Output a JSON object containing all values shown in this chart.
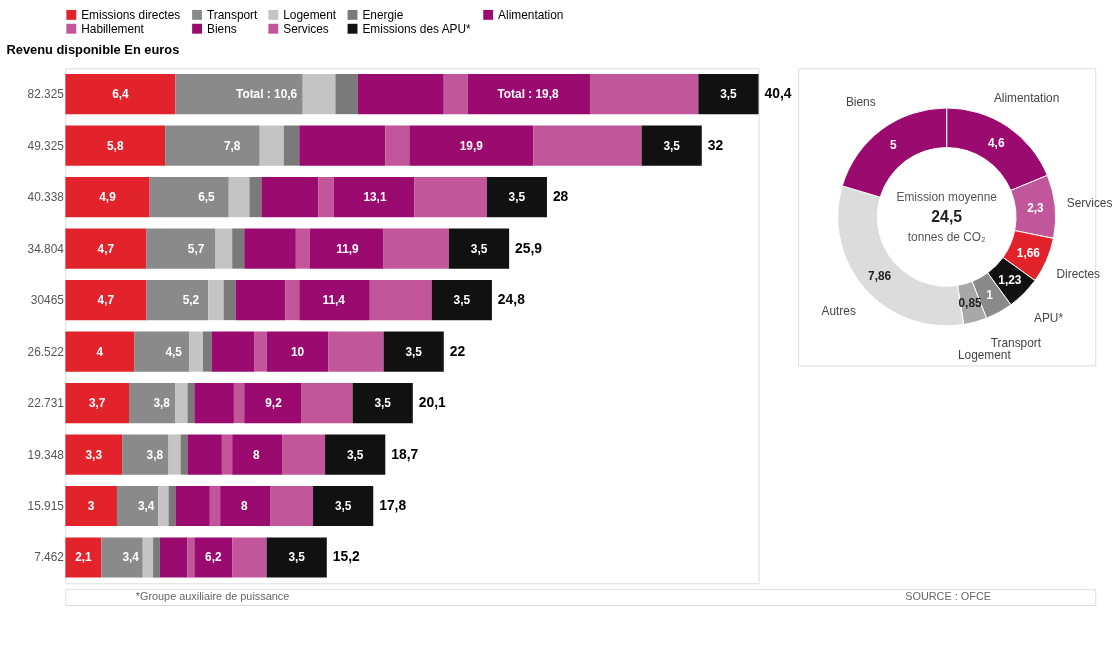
{
  "chart_data": [
    {
      "type": "bar",
      "orientation": "horizontal",
      "stacked": true,
      "ylabel": "Revenu disponible En euros",
      "legend": "top",
      "categories": [
        "82.325",
        "49.325",
        "40.338",
        "34.804",
        "30465",
        "26.522",
        "22.731",
        "19.348",
        "15.915",
        "7.462"
      ],
      "series": [
        {
          "name": "Emissions directes",
          "color": "#e3232c",
          "values": [
            6.4,
            5.8,
            4.9,
            4.7,
            4.7,
            4,
            3.7,
            3.3,
            3,
            2.1
          ],
          "value_labels": [
            "6,4",
            "5,8",
            "4,9",
            "4,7",
            "4,7",
            "4",
            "3,7",
            "3,3",
            "3",
            "2,1"
          ]
        },
        {
          "name": "Transport",
          "color": "#8a8a8a",
          "values": [
            7.4,
            5.5,
            4.6,
            4.0,
            3.6,
            3.2,
            2.7,
            2.7,
            2.4,
            2.4
          ]
        },
        {
          "name": "Logement",
          "color": "#c4c4c4",
          "values": [
            1.9,
            1.4,
            1.2,
            1.0,
            0.9,
            0.8,
            0.7,
            0.7,
            0.6,
            0.6
          ]
        },
        {
          "name": "Energie",
          "color": "#7a7a7a",
          "values": [
            1.3,
            0.9,
            0.7,
            0.7,
            0.7,
            0.5,
            0.4,
            0.4,
            0.4,
            0.4
          ]
        },
        {
          "name": "Alimentation",
          "color": "#9b0a6e",
          "values": [
            5.0,
            5.0,
            3.3,
            3.0,
            2.9,
            2.5,
            2.3,
            2.0,
            2.0,
            1.6
          ]
        },
        {
          "name": "Habillement",
          "color": "#c2569a",
          "values": [
            1.4,
            1.4,
            0.9,
            0.8,
            0.8,
            0.7,
            0.6,
            0.6,
            0.6,
            0.4
          ]
        },
        {
          "name": "Biens",
          "color": "#9b0a6e",
          "values": [
            7.1,
            7.2,
            4.7,
            4.3,
            4.1,
            3.6,
            3.3,
            2.9,
            2.9,
            2.2
          ]
        },
        {
          "name": "Services",
          "color": "#c2569a",
          "values": [
            6.3,
            6.3,
            4.2,
            3.8,
            3.6,
            3.2,
            3.0,
            2.5,
            2.5,
            2.0
          ]
        },
        {
          "name": "Emissions des APU*",
          "color": "#111111",
          "values": [
            3.5,
            3.5,
            3.5,
            3.5,
            3.5,
            3.5,
            3.5,
            3.5,
            3.5,
            3.5
          ],
          "value_labels": [
            "3,5",
            "3,5",
            "3,5",
            "3,5",
            "3,5",
            "3,5",
            "3,5",
            "3,5",
            "3,5",
            "3,5"
          ]
        }
      ],
      "totals": [
        "40,4",
        "32",
        "28",
        "25,9",
        "24,8",
        "22",
        "20,1",
        "18,7",
        "17,8",
        "15,2"
      ],
      "annotations": [
        "*Groupe auxiliaire de puissance",
        "SOURCE : OFCE",
        {
          "text": "Total : 10,6",
          "x": 11.7,
          "y": "82.325"
        },
        {
          "text": "7,8",
          "x": 9.7,
          "y": "49.325"
        },
        {
          "text": "6,5",
          "x": 8.2,
          "y": "40.338"
        },
        {
          "text": "5,7",
          "x": 7.6,
          "y": "34.804"
        },
        {
          "text": "5,2",
          "x": 7.3,
          "y": "30465"
        },
        {
          "text": "4,5",
          "x": 6.3,
          "y": "26.522"
        },
        {
          "text": "3,8",
          "x": 5.6,
          "y": "22.731"
        },
        {
          "text": "3,8",
          "x": 5.2,
          "y": "19.348"
        },
        {
          "text": "3,4",
          "x": 4.7,
          "y": "15.915"
        },
        {
          "text": "3,4",
          "x": 3.8,
          "y": "7.462"
        },
        {
          "text": "Total : 19,8",
          "x": 26.9,
          "y": "82.325"
        },
        {
          "text": "19,9",
          "x": 23.6,
          "y": "49.325"
        },
        {
          "text": "13,1",
          "x": 18,
          "y": "40.338"
        },
        {
          "text": "11,9",
          "x": 16.4,
          "y": "34.804"
        },
        {
          "text": "11,4",
          "x": 15.6,
          "y": "30465"
        },
        {
          "text": "10",
          "x": 13.5,
          "y": "26.522"
        },
        {
          "text": "9,2",
          "x": 12.1,
          "y": "22.731"
        },
        {
          "text": "8",
          "x": 11.1,
          "y": "19.348"
        },
        {
          "text": "8",
          "x": 10.4,
          "y": "15.915"
        },
        {
          "text": "6,2",
          "x": 8.6,
          "y": "7.462"
        }
      ]
    },
    {
      "type": "donut",
      "categories": [
        "Alimentation",
        "Services",
        "Directes",
        "APU*",
        "Transport",
        "Logement",
        "Autres",
        "Biens"
      ],
      "values": [
        4.6,
        2.3,
        1.66,
        1.23,
        1,
        0.85,
        7.86,
        5
      ],
      "value_labels": [
        "4,6",
        "2,3",
        "1,66",
        "1,23",
        "1",
        "0,85",
        "7,86",
        "5"
      ],
      "colors": [
        "#9b0a6e",
        "#c2569a",
        "#e3232c",
        "#111111",
        "#8a8a8a",
        "#a8a8a8",
        "#dcdcdc",
        "#9b0a6e"
      ],
      "annotations": [
        "Emission moyenne",
        "24,5",
        "tonnes de CO₂"
      ]
    }
  ]
}
